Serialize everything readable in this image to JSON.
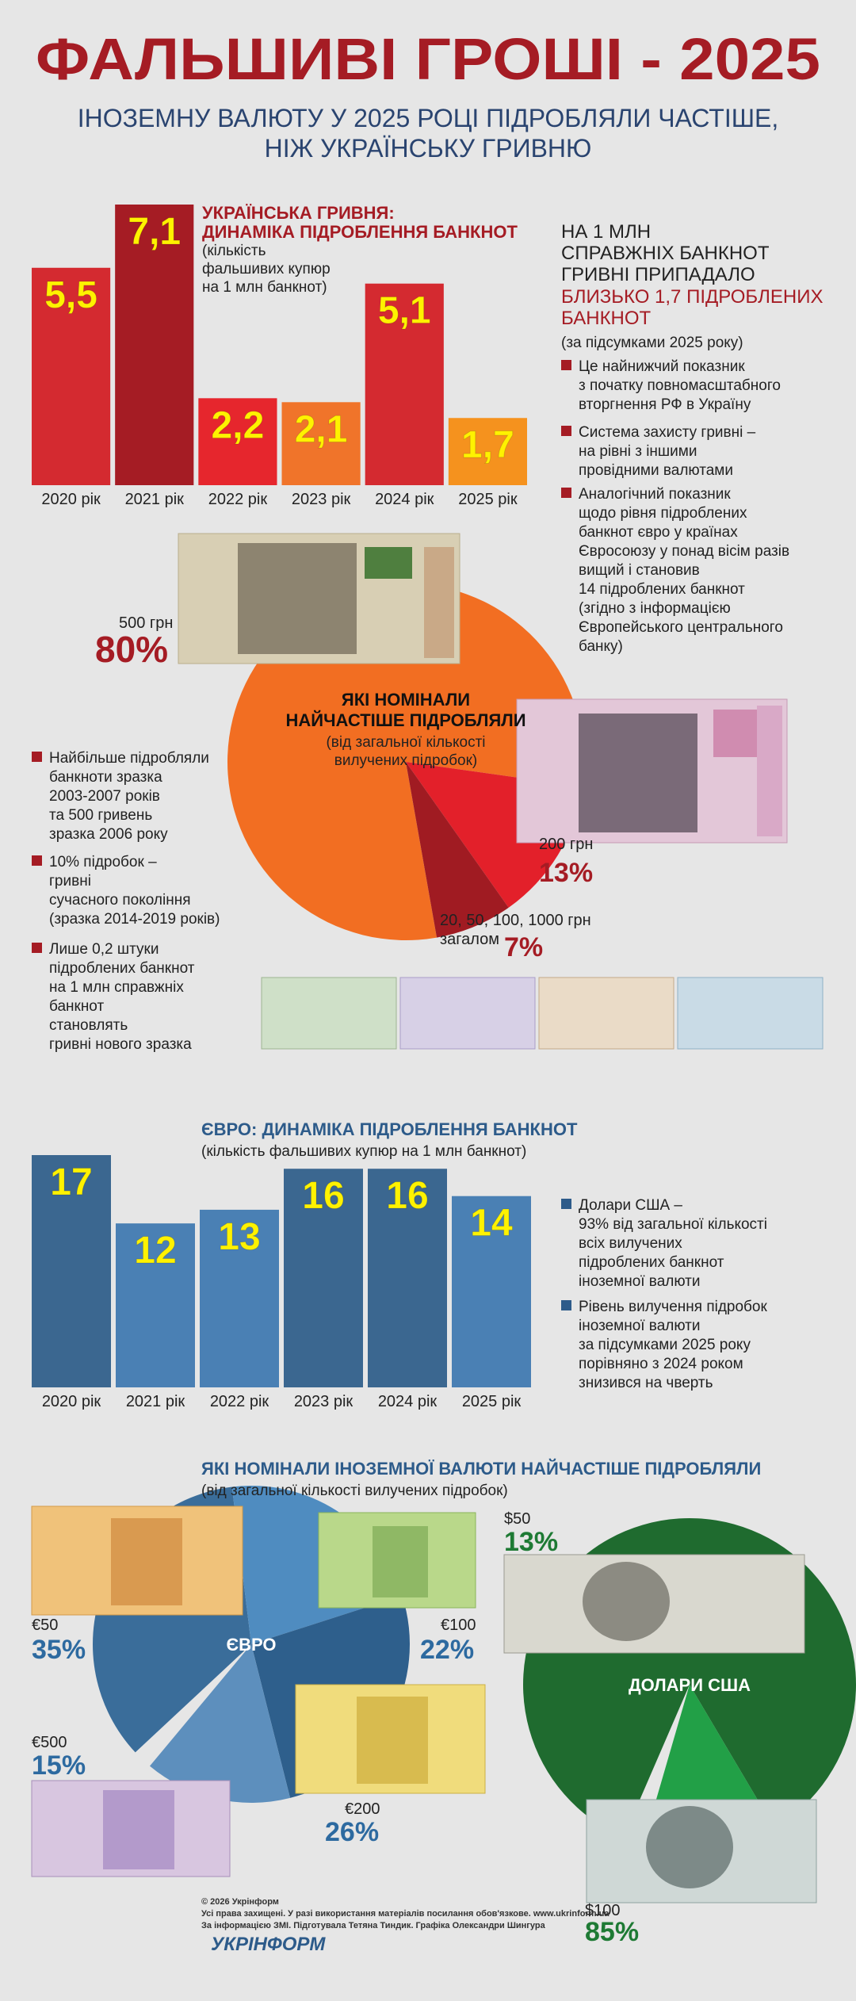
{
  "header": {
    "title": "ФАЛЬШИВІ ГРОШІ - 2025",
    "subtitle": [
      "ІНОЗЕМНУ ВАЛЮТУ У 2025 РОЦІ ПІДРОБЛЯЛИ ЧАСТІШЕ,",
      "НІЖ УКРАЇНСЬКУ ГРИВНЮ"
    ]
  },
  "chart_data": [
    {
      "type": "bar",
      "title": [
        "УКРАЇНСЬКА ГРИВНЯ:",
        "ДИНАМІКА ПІДРОБЛЕННЯ БАНКНОТ"
      ],
      "subtitle": [
        "(кількість",
        "фальшивих купюр",
        "на 1 млн банкнот)"
      ],
      "categories": [
        "2020 рік",
        "2021 рік",
        "2022 рік",
        "2023 рік",
        "2024 рік",
        "2025 рік"
      ],
      "values": [
        5.5,
        7.1,
        2.2,
        2.1,
        5.1,
        1.7
      ],
      "value_labels": [
        "5,5",
        "7,1",
        "2,2",
        "2,1",
        "5,1",
        "1,7"
      ],
      "colors": [
        "#d42a30",
        "#a51c24",
        "#e6262d",
        "#f0742a",
        "#d42a30",
        "#f5921e"
      ],
      "title_color": "#a51c24",
      "label_color": "#fff200"
    },
    {
      "type": "pie",
      "title": [
        "ЯКІ НОМІНАЛИ",
        "НАЙЧАСТІШЕ ПІДРОБЛЯЛИ"
      ],
      "subtitle": [
        "(від загальної кількості",
        "вилучених підробок)"
      ],
      "categories": [
        [
          "500 грн"
        ],
        [
          "200 грн"
        ],
        [
          "20, 50, 100, 1000 грн",
          "загалом"
        ]
      ],
      "values": [
        80,
        13,
        7
      ],
      "value_labels": [
        "80%",
        "13%",
        "7%"
      ],
      "colors": [
        "#f26e22",
        "#e3202a",
        "#a01b22"
      ],
      "label_color": "#a51c24"
    },
    {
      "type": "bar",
      "title": [
        "ЄВРО: ДИНАМІКА ПІДРОБЛЕННЯ БАНКНОТ"
      ],
      "subtitle": [
        "(кількість фальшивих купюр на 1 млн банкнот)"
      ],
      "categories": [
        "2020 рік",
        "2021 рік",
        "2022 рік",
        "2023 рік",
        "2024 рік",
        "2025 рік"
      ],
      "values": [
        17,
        12,
        13,
        16,
        16,
        14
      ],
      "colors": [
        "#3b6790",
        "#4a80b4",
        "#4a80b4",
        "#3b6790",
        "#3b6790",
        "#4a80b4"
      ],
      "title_color": "#2d5b8a",
      "label_color": "#fff200"
    },
    {
      "type": "pie",
      "title": [
        "ЯКІ НОМІНАЛИ ІНОЗЕМНОЇ ВАЛЮТИ НАЙЧАСТІШЕ ПІДРОБЛЯЛИ"
      ],
      "subtitle": [
        "(від загальної кількості вилучених підробок)"
      ],
      "center_label": "ЄВРО",
      "categories": [
        [
          "€50"
        ],
        [
          "€100"
        ],
        [
          "€200"
        ],
        [
          "€500"
        ]
      ],
      "values": [
        35,
        22,
        26,
        15
      ],
      "value_labels": [
        "35%",
        "22%",
        "26%",
        "15%"
      ],
      "colors": [
        "#3a6d9a",
        "#4f8cc0",
        "#2e5f8c",
        "#5d8fbd"
      ],
      "title_color": "#2d5b8a",
      "label_color": "#2d6aa0"
    },
    {
      "type": "pie",
      "center_label": "ДОЛАРИ США",
      "categories": [
        [
          "$100"
        ],
        [
          "$50"
        ]
      ],
      "values": [
        85,
        13
      ],
      "value_labels": [
        "85%",
        "13%"
      ],
      "colors": [
        "#1f6b2f",
        "#22a047"
      ],
      "label_color": "#1e7a34"
    }
  ],
  "hryvnia_summary": {
    "lines": [
      "НА 1 МЛН",
      "СПРАВЖНІХ БАНКНОТ",
      "ГРИВНІ ПРИПАДАЛО"
    ],
    "highlight": [
      "БЛИЗЬКО 1,7 ПІДРОБЛЕНИХ",
      "БАНКНОТ"
    ],
    "note": "(за підсумками 2025 року)"
  },
  "hryvnia_facts": [
    [
      "Це найнижчий показник",
      "з початку повномасштабного",
      "вторгнення РФ в Україну"
    ],
    [
      "Система захисту гривні –",
      "на рівні з іншими",
      "провідними валютами"
    ],
    [
      "Аналогічний показник",
      "щодо рівня підроблених",
      "банкнот євро у країнах",
      "Євросоюзу у понад вісім разів",
      "вищий і становив",
      "14 підроблених банкнот",
      "(згідно з інформацією",
      "Європейського центрального",
      "банку)"
    ]
  ],
  "denomination_facts": [
    [
      "Найбільше підробляли",
      "банкноти зразка",
      "2003-2007 років",
      "та 500 гривень",
      "зразка 2006 року"
    ],
    [
      "10% підробок –",
      "гривні",
      "сучасного покоління",
      "(зразка 2014-2019 років)"
    ],
    [
      "Лише 0,2 штуки",
      "підроблених банкнот",
      "на 1 млн справжніх",
      "банкнот",
      "становлять",
      "гривні нового зразка"
    ]
  ],
  "foreign_facts": [
    [
      "Долари США –",
      "93% від загальної кількості",
      "всіх вилучених",
      "підроблених банкнот",
      "іноземної валюти"
    ],
    [
      "Рівень вилучення підробок",
      "іноземної валюти",
      "за підсумками 2025 року",
      "порівняно з 2024 роком",
      "знизився на чверть"
    ]
  ],
  "footer": {
    "lines": [
      "© 2026 Укрінформ",
      "Усі права захищені. У разі використання матеріалів посилання обов'язкове. www.ukrinform.ua",
      "За інформацією ЗМІ. Підготувала Тетяна Тиндик. Графіка Олександри Шингура"
    ],
    "logo": "УКРІНФОРМ"
  }
}
